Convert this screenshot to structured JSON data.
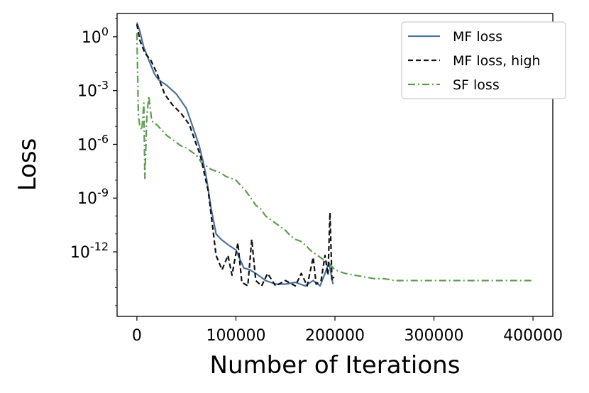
{
  "chart_data": {
    "type": "line",
    "title": "",
    "xlabel": "Number of Iterations",
    "ylabel": "Loss",
    "xscale": "linear",
    "yscale": "log",
    "xlim": [
      -20000,
      420000
    ],
    "ylim_log10": [
      -15.6,
      1.3
    ],
    "xticks": [
      0,
      100000,
      200000,
      300000,
      400000
    ],
    "xtick_labels": [
      "0",
      "100000",
      "200000",
      "300000",
      "400000"
    ],
    "yticks_log10": [
      0,
      -3,
      -6,
      -9,
      -12
    ],
    "ytick_labels": [
      {
        "base": "10",
        "exp": "0"
      },
      {
        "base": "10",
        "exp": "-3"
      },
      {
        "base": "10",
        "exp": "-6"
      },
      {
        "base": "10",
        "exp": "-9"
      },
      {
        "base": "10",
        "exp": "-12"
      }
    ],
    "grid": false,
    "legend_position": "top-right",
    "series": [
      {
        "name": "MF loss",
        "color": "#4c72a0",
        "style": "solid",
        "log10_loss": [
          [
            0,
            0.8
          ],
          [
            3000,
            0.3
          ],
          [
            7000,
            -0.6
          ],
          [
            12000,
            -1.3
          ],
          [
            18000,
            -2.1
          ],
          [
            22000,
            -2.4
          ],
          [
            30000,
            -2.7
          ],
          [
            40000,
            -3.2
          ],
          [
            50000,
            -4.0
          ],
          [
            55000,
            -4.8
          ],
          [
            60000,
            -5.6
          ],
          [
            63000,
            -6.1
          ],
          [
            67000,
            -7.0
          ],
          [
            70000,
            -7.8
          ],
          [
            75000,
            -9.6
          ],
          [
            80000,
            -11.0
          ],
          [
            85000,
            -11.3
          ],
          [
            92000,
            -11.6
          ],
          [
            100000,
            -11.9
          ],
          [
            108000,
            -12.9
          ],
          [
            114000,
            -13.0
          ],
          [
            120000,
            -13.2
          ],
          [
            130000,
            -13.6
          ],
          [
            140000,
            -13.8
          ],
          [
            150000,
            -13.8
          ],
          [
            160000,
            -13.7
          ],
          [
            170000,
            -13.9
          ],
          [
            178000,
            -13.6
          ],
          [
            185000,
            -13.9
          ],
          [
            190000,
            -13.2
          ],
          [
            194000,
            -12.6
          ],
          [
            198000,
            -13.8
          ]
        ]
      },
      {
        "name": "MF loss, high",
        "color": "#111111",
        "style": "dashed",
        "log10_loss": [
          [
            0,
            0.7
          ],
          [
            3000,
            -0.2
          ],
          [
            8000,
            -0.9
          ],
          [
            14000,
            -1.3
          ],
          [
            20000,
            -2.0
          ],
          [
            28000,
            -3.2
          ],
          [
            36000,
            -3.8
          ],
          [
            45000,
            -4.3
          ],
          [
            53000,
            -4.9
          ],
          [
            60000,
            -6.0
          ],
          [
            64000,
            -6.6
          ],
          [
            68000,
            -7.6
          ],
          [
            72000,
            -8.6
          ],
          [
            76000,
            -10.4
          ],
          [
            80000,
            -12.2
          ],
          [
            86000,
            -13.0
          ],
          [
            92000,
            -12.2
          ],
          [
            96000,
            -13.3
          ],
          [
            102000,
            -11.5
          ],
          [
            106000,
            -13.7
          ],
          [
            112000,
            -13.9
          ],
          [
            116000,
            -11.3
          ],
          [
            120000,
            -13.6
          ],
          [
            126000,
            -13.9
          ],
          [
            132000,
            -13.2
          ],
          [
            140000,
            -13.9
          ],
          [
            150000,
            -13.6
          ],
          [
            160000,
            -13.9
          ],
          [
            166000,
            -13.2
          ],
          [
            172000,
            -13.9
          ],
          [
            178000,
            -12.3
          ],
          [
            181000,
            -13.8
          ],
          [
            186000,
            -13.6
          ],
          [
            190000,
            -12.2
          ],
          [
            193000,
            -13.3
          ],
          [
            195000,
            -9.8
          ],
          [
            197000,
            -13.6
          ],
          [
            199000,
            -13.4
          ]
        ]
      },
      {
        "name": "SF loss",
        "color": "#5a9e4b",
        "style": "dashdot",
        "log10_loss": [
          [
            0,
            0.2
          ],
          [
            1500,
            -4.4
          ],
          [
            3000,
            -5.0
          ],
          [
            5000,
            -5.2
          ],
          [
            7000,
            -3.7
          ],
          [
            8000,
            -7.9
          ],
          [
            10000,
            -4.5
          ],
          [
            12000,
            -3.3
          ],
          [
            15000,
            -4.7
          ],
          [
            20000,
            -4.9
          ],
          [
            25000,
            -5.2
          ],
          [
            30000,
            -5.5
          ],
          [
            35000,
            -5.7
          ],
          [
            40000,
            -5.9
          ],
          [
            45000,
            -6.1
          ],
          [
            50000,
            -6.2
          ],
          [
            55000,
            -6.4
          ],
          [
            60000,
            -6.6
          ],
          [
            65000,
            -7.0
          ],
          [
            70000,
            -7.2
          ],
          [
            75000,
            -7.4
          ],
          [
            80000,
            -7.5
          ],
          [
            85000,
            -7.6
          ],
          [
            90000,
            -7.8
          ],
          [
            95000,
            -7.9
          ],
          [
            100000,
            -8.0
          ],
          [
            105000,
            -8.3
          ],
          [
            110000,
            -8.6
          ],
          [
            115000,
            -9.0
          ],
          [
            120000,
            -9.4
          ],
          [
            125000,
            -9.6
          ],
          [
            130000,
            -10.0
          ],
          [
            135000,
            -10.2
          ],
          [
            140000,
            -10.4
          ],
          [
            145000,
            -10.6
          ],
          [
            150000,
            -10.8
          ],
          [
            155000,
            -11.1
          ],
          [
            160000,
            -11.3
          ],
          [
            165000,
            -11.4
          ],
          [
            170000,
            -11.6
          ],
          [
            175000,
            -11.9
          ],
          [
            180000,
            -12.1
          ],
          [
            185000,
            -12.3
          ],
          [
            190000,
            -12.5
          ],
          [
            195000,
            -12.7
          ],
          [
            200000,
            -13.0
          ],
          [
            210000,
            -13.2
          ],
          [
            220000,
            -13.3
          ],
          [
            230000,
            -13.4
          ],
          [
            240000,
            -13.5
          ],
          [
            250000,
            -13.5
          ],
          [
            260000,
            -13.6
          ],
          [
            270000,
            -13.6
          ],
          [
            280000,
            -13.6
          ],
          [
            290000,
            -13.6
          ],
          [
            300000,
            -13.6
          ],
          [
            320000,
            -13.6
          ],
          [
            340000,
            -13.6
          ],
          [
            360000,
            -13.6
          ],
          [
            380000,
            -13.6
          ],
          [
            400000,
            -13.6
          ]
        ]
      }
    ]
  }
}
